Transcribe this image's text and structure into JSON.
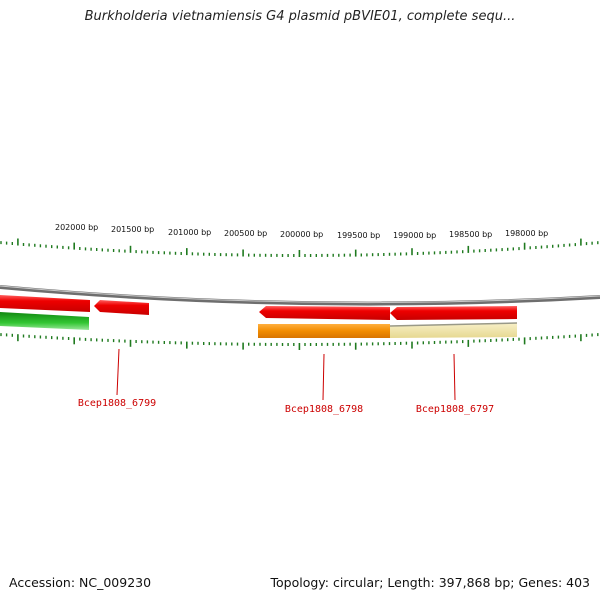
{
  "title": "Burkholderia vietnamiensis G4 plasmid pBVIE01, complete sequ...",
  "accession": "Accession: NC_009230",
  "summary": "Topology: circular; Length: 397,868 bp; Genes: 403",
  "ruler_labels": [
    "202000 bp",
    "201500 bp",
    "201000 bp",
    "200500 bp",
    "200000 bp",
    "199500 bp",
    "199000 bp",
    "198500 bp",
    "198000 bp"
  ],
  "gene_labels": [
    "Bcep1808_6799",
    "Bcep1808_6798",
    "Bcep1808_6797"
  ],
  "colors": {
    "tick": "#1f7a1f",
    "backbone": "#7a7a7a",
    "gene_red": "#ee0000",
    "gene_green": "#22b322",
    "gene_orange": "#f28c00",
    "gene_khaki": "#ece0a0",
    "label_red": "#cc0000"
  }
}
